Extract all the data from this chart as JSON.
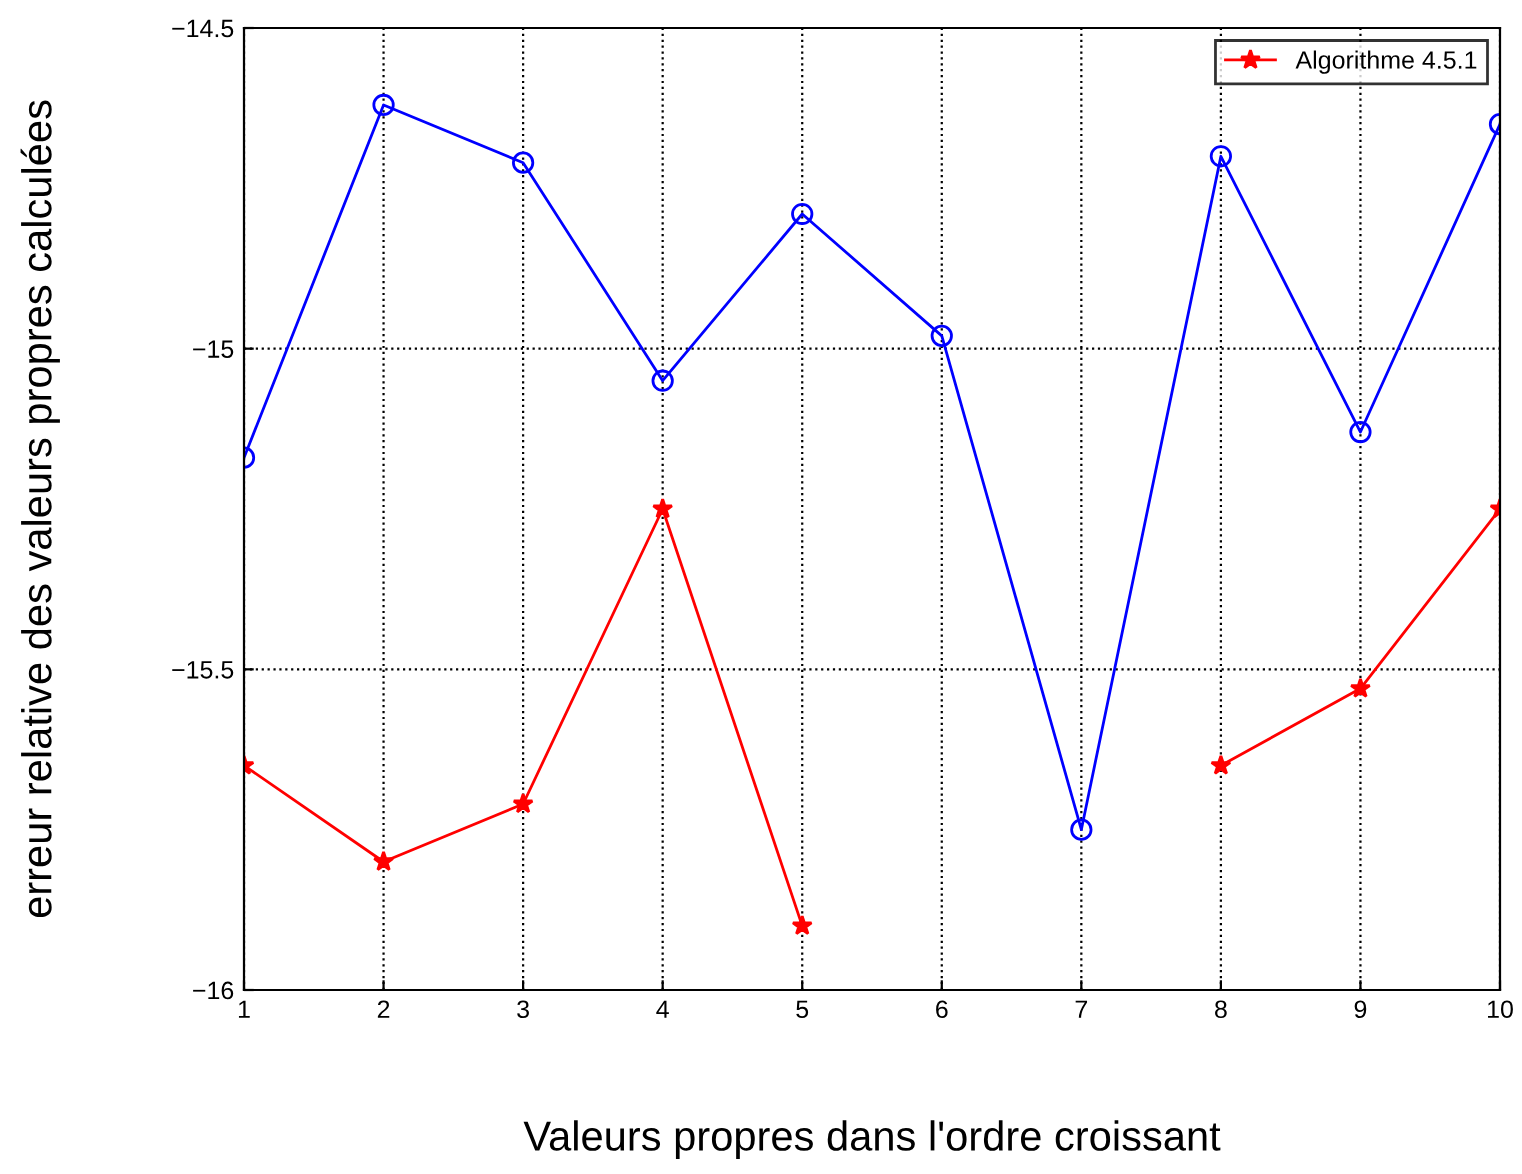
{
  "chart_data": {
    "type": "line",
    "xlabel": "Valeurs propres dans l'ordre croissant",
    "ylabel": "erreur relative des valeurs propres calculées",
    "x": [
      1,
      2,
      3,
      4,
      5,
      6,
      7,
      8,
      9,
      10
    ],
    "series": [
      {
        "name": "Algorithme 4.5.1",
        "color": "#ff0000",
        "marker": "star",
        "values": [
          -15.65,
          -15.8,
          -15.71,
          -15.25,
          -15.9,
          null,
          null,
          -15.65,
          -15.53,
          -15.25
        ]
      },
      {
        "color": "#0000ff",
        "marker": "circle",
        "values": [
          -15.17,
          -14.62,
          -14.71,
          -15.05,
          -14.79,
          -14.98,
          -15.75,
          -14.7,
          -15.13,
          -14.65
        ]
      }
    ],
    "xlim": [
      1,
      10
    ],
    "xticks": [
      1,
      2,
      3,
      4,
      5,
      6,
      7,
      8,
      9,
      10
    ],
    "ylim": [
      -16,
      -14.5
    ],
    "yticks": [
      {
        "value": -16,
        "label": "−16"
      },
      {
        "value": -15.5,
        "label": "−15.5"
      },
      {
        "value": -15,
        "label": "−15"
      },
      {
        "value": -14.5,
        "label": "−14.5"
      }
    ],
    "grid": true,
    "legend": "top right",
    "line_style": "solid"
  }
}
